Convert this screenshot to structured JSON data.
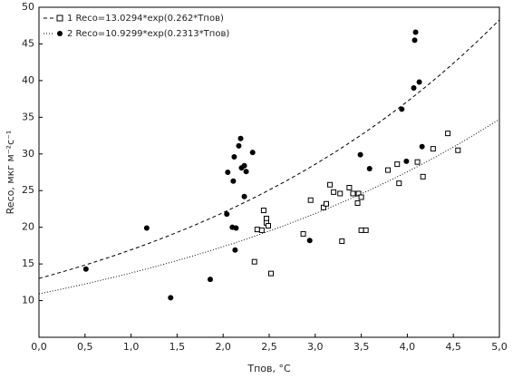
{
  "chart_data": {
    "type": "scatter",
    "x_label": "Tпов, °C",
    "y_label": "Reco, мкг м⁻²с⁻¹",
    "xlim": [
      0,
      5
    ],
    "ylim": [
      5,
      50
    ],
    "xticks": [
      {
        "value": 0,
        "label": "0,0"
      },
      {
        "value": 0.5,
        "label": "0,5"
      },
      {
        "value": 1,
        "label": "1,0"
      },
      {
        "value": 1.5,
        "label": "1,5"
      },
      {
        "value": 2,
        "label": "2,0"
      },
      {
        "value": 2.5,
        "label": "2,5"
      },
      {
        "value": 3,
        "label": "3,0"
      },
      {
        "value": 3.5,
        "label": "3,5"
      },
      {
        "value": 4,
        "label": "4,0"
      },
      {
        "value": 4.5,
        "label": "4,5"
      },
      {
        "value": 5,
        "label": "5,0"
      }
    ],
    "yticks": [
      10,
      15,
      20,
      25,
      30,
      35,
      40,
      45,
      50
    ],
    "legend": "upper left",
    "series": [
      {
        "name": "1 Reco=13.0294*exp(0.262*Tпов)",
        "color": "#000000",
        "marker": "square",
        "line": "dash",
        "fit": {
          "a": 13.0294,
          "b": 0.262
        },
        "x": [
          2.34,
          2.44,
          2.47,
          2.47,
          2.49,
          2.37,
          2.42,
          2.52,
          2.95,
          2.87,
          3.09,
          3.12,
          3.16,
          3.2,
          3.27,
          3.29,
          3.37,
          3.41,
          3.47,
          3.46,
          3.5,
          3.5,
          3.55,
          3.79,
          3.89,
          3.91,
          4.11,
          4.17,
          4.28,
          4.44,
          4.55
        ],
        "values": [
          15.3,
          22.3,
          21.2,
          20.6,
          20.2,
          19.7,
          19.6,
          13.7,
          23.7,
          19.1,
          22.7,
          23.2,
          25.8,
          24.8,
          24.6,
          18.1,
          25.4,
          24.6,
          24.6,
          23.3,
          24.1,
          19.6,
          19.6,
          27.8,
          28.6,
          26.0,
          28.9,
          26.9,
          30.7,
          32.8,
          30.5
        ]
      },
      {
        "name": "2 Reco=10.9299*exp(0.2313*Tпов)",
        "color": "#000000",
        "marker": "circle",
        "line": "dot",
        "fit": {
          "a": 10.9299,
          "b": 0.2313
        },
        "x": [
          0.51,
          1.17,
          1.43,
          1.86,
          2.05,
          2.04,
          2.11,
          2.12,
          2.17,
          2.19,
          2.2,
          2.1,
          2.14,
          2.13,
          2.23,
          2.25,
          2.23,
          2.32,
          2.94,
          3.49,
          3.59,
          3.94,
          3.99,
          4.07,
          4.08,
          4.09,
          4.13,
          4.16
        ],
        "values": [
          14.3,
          19.9,
          10.4,
          12.9,
          27.5,
          21.8,
          26.3,
          29.6,
          31.1,
          32.1,
          28.1,
          20.0,
          19.9,
          16.9,
          28.4,
          27.6,
          24.2,
          30.2,
          18.2,
          29.9,
          28.0,
          36.1,
          29.0,
          39.0,
          45.5,
          46.6,
          39.8,
          31.0
        ]
      }
    ]
  }
}
